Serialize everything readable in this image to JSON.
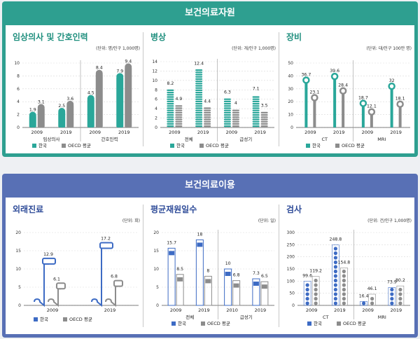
{
  "sections": [
    {
      "title": "보건의료자원",
      "color": "#2e9f90",
      "panels": [
        {
          "title": "임상의사 및 간호인력",
          "unit": "(단위: 명/인구 1,000명)"
        },
        {
          "title": "병상",
          "unit": "(단위: 개/인구 1,000명)"
        },
        {
          "title": "장비",
          "unit": "(단위: 대/인구 100만 명)"
        }
      ]
    },
    {
      "title": "보건의료이용",
      "color": "#5870b5",
      "panels": [
        {
          "title": "외래진료",
          "unit": "(단위: 회)"
        },
        {
          "title": "평균재원일수",
          "unit": "(단위: 일)"
        },
        {
          "title": "검사",
          "unit": "(단위: 건/인구 1,000명)"
        }
      ]
    }
  ],
  "legend": {
    "korea": "한국",
    "oecd": "OECD 평균"
  },
  "colors": {
    "korea_1": "#2aa79a",
    "korea_2": "#3d6bc4",
    "oecd": "#8c8c8c"
  },
  "chart_data": [
    {
      "type": "bar",
      "title": "임상의사 및 간호인력",
      "ylim": [
        0,
        10
      ],
      "yticks": [
        0,
        2,
        4,
        6,
        8,
        10
      ],
      "categories": [
        "2009",
        "2019",
        "2009",
        "2019"
      ],
      "groups": [
        "임상의사",
        "간호인력"
      ],
      "series": [
        {
          "name": "한국",
          "values": [
            1.9,
            2.5,
            4.5,
            7.9
          ]
        },
        {
          "name": "OECD 평균",
          "values": [
            3.1,
            3.6,
            8.4,
            9.4
          ]
        }
      ]
    },
    {
      "type": "bar",
      "title": "병상",
      "ylim": [
        0,
        14
      ],
      "yticks": [
        0,
        2,
        4,
        6,
        8,
        10,
        12,
        14
      ],
      "categories": [
        "2009",
        "2019",
        "2009",
        "2019"
      ],
      "groups": [
        "전체",
        "급성기"
      ],
      "series": [
        {
          "name": "한국",
          "values": [
            8.2,
            12.4,
            6.3,
            7.1
          ]
        },
        {
          "name": "OECD 평균",
          "values": [
            4.9,
            4.4,
            4.0,
            3.5
          ]
        }
      ]
    },
    {
      "type": "bar",
      "title": "장비",
      "ylim": [
        0,
        50
      ],
      "yticks": [
        0,
        10,
        20,
        30,
        40,
        50
      ],
      "categories": [
        "2009",
        "2019",
        "2009",
        "2019"
      ],
      "groups": [
        "CT",
        "MRI"
      ],
      "series": [
        {
          "name": "한국",
          "values": [
            36.7,
            39.6,
            18.7,
            32.0
          ]
        },
        {
          "name": "OECD 평균",
          "values": [
            23.1,
            28.4,
            12.1,
            18.1
          ]
        }
      ]
    },
    {
      "type": "bar",
      "title": "외래진료",
      "ylim": [
        0,
        20
      ],
      "yticks": [
        0,
        5,
        10,
        15,
        20
      ],
      "categories": [
        "2009",
        "2019"
      ],
      "groups": [],
      "series": [
        {
          "name": "한국",
          "values": [
            12.9,
            17.2
          ]
        },
        {
          "name": "OECD 평균",
          "values": [
            6.1,
            6.8
          ]
        }
      ]
    },
    {
      "type": "bar",
      "title": "평균재원일수",
      "ylim": [
        0,
        20
      ],
      "yticks": [
        0,
        5,
        10,
        15,
        20
      ],
      "categories": [
        "2009",
        "2019",
        "2010",
        "2019"
      ],
      "groups": [
        "전체",
        "급성기"
      ],
      "series": [
        {
          "name": "한국",
          "values": [
            15.7,
            18.0,
            10.0,
            7.3
          ]
        },
        {
          "name": "OECD 평균",
          "values": [
            8.5,
            8.0,
            6.8,
            6.5
          ]
        }
      ]
    },
    {
      "type": "bar",
      "title": "검사",
      "ylim": [
        0,
        300
      ],
      "yticks": [
        0,
        50,
        100,
        150,
        200,
        250,
        300
      ],
      "categories": [
        "2009",
        "2019",
        "2009",
        "2019"
      ],
      "groups": [
        "CT",
        "MRI"
      ],
      "series": [
        {
          "name": "한국",
          "values": [
            99.6,
            248.8,
            16.4,
            73.9
          ]
        },
        {
          "name": "OECD 평균",
          "values": [
            119.2,
            154.8,
            46.1,
            80.2
          ]
        }
      ]
    }
  ]
}
